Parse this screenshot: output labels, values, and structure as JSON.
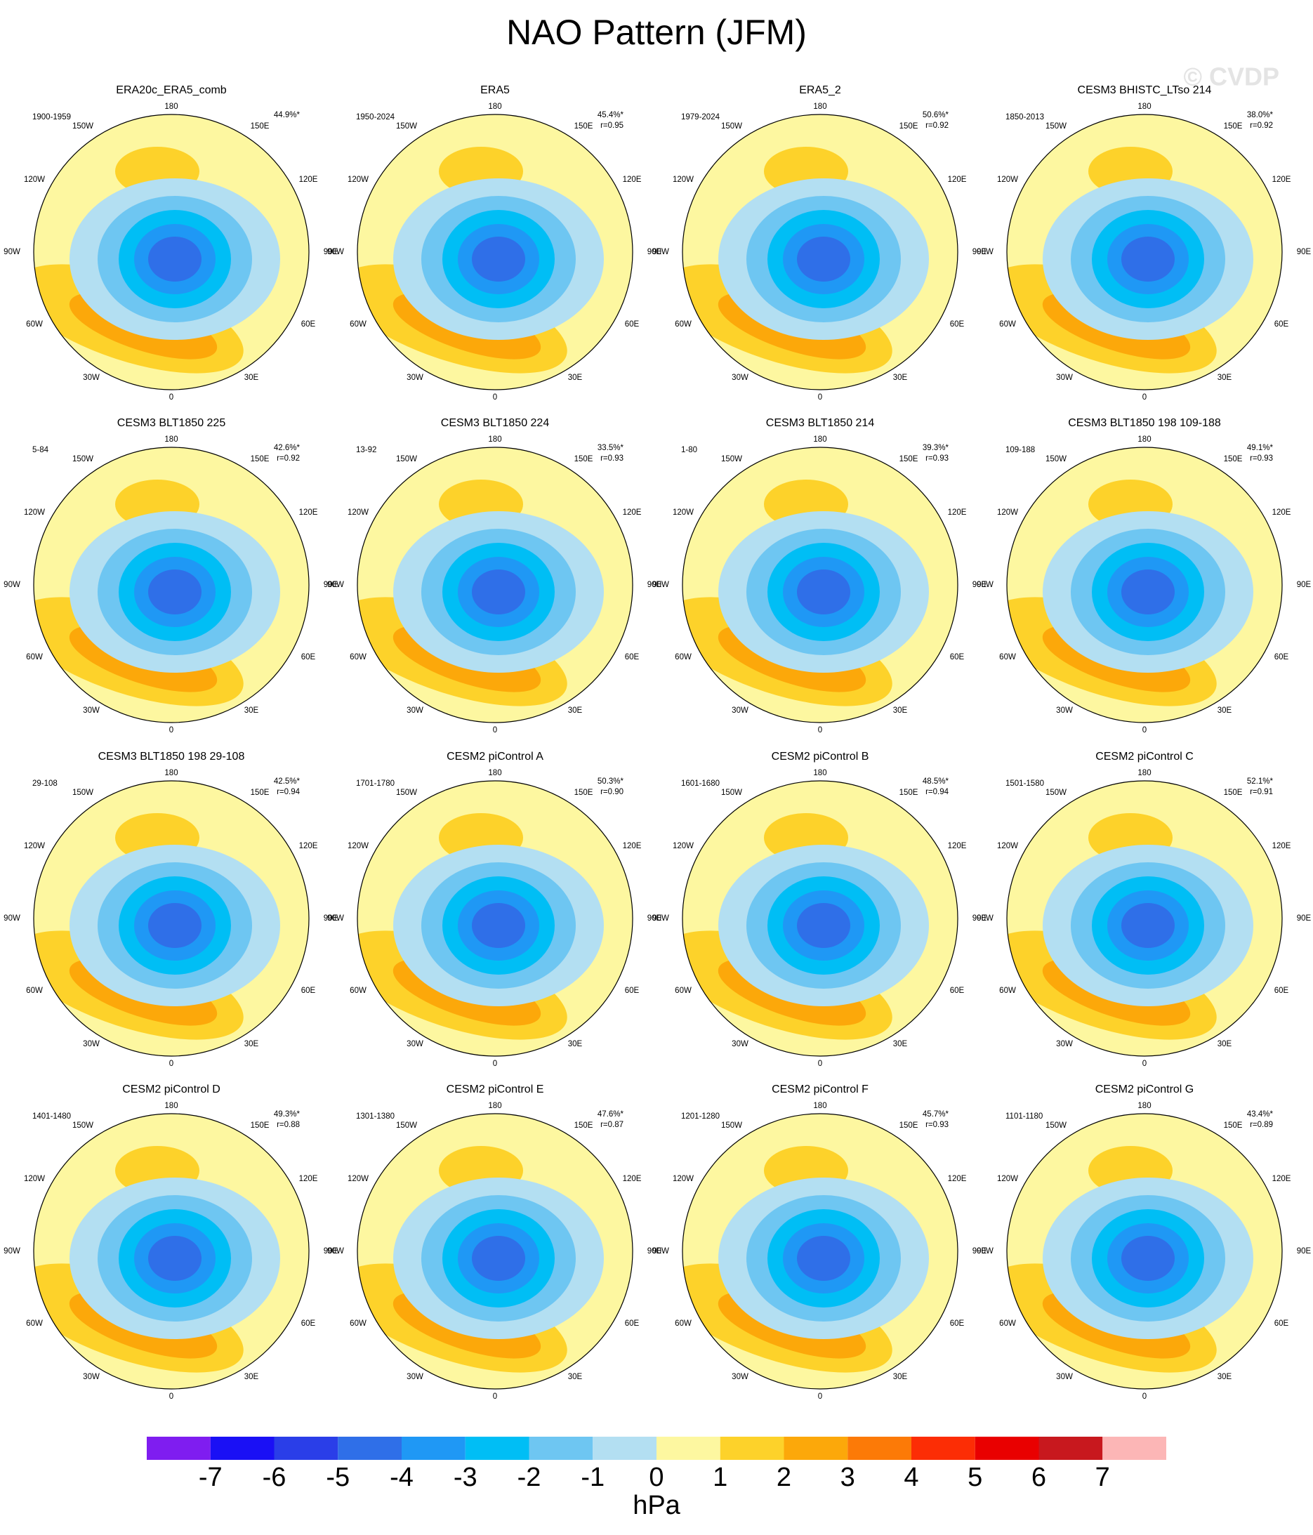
{
  "title": "NAO Pattern (JFM)",
  "watermark": "© CVDP",
  "lon_labels": [
    "180",
    "150W",
    "150E",
    "120W",
    "120E",
    "90W",
    "90E",
    "60W",
    "60E",
    "30W",
    "30E",
    "0"
  ],
  "panels": [
    {
      "title": "ERA20c_ERA5_comb",
      "period": "1900-1959",
      "pct": "44.9%*"
    },
    {
      "title": "ERA5",
      "period": "1950-2024",
      "pct": "45.4%*",
      "r": "r=0.95"
    },
    {
      "title": "ERA5_2",
      "period": "1979-2024",
      "pct": "50.6%*",
      "r": "r=0.92"
    },
    {
      "title": "CESM3 BHISTC_LTso 214",
      "period": "1850-2013",
      "pct": "38.0%*",
      "r": "r=0.92"
    },
    {
      "title": "CESM3 BLT1850 225",
      "period": "5-84",
      "pct": "42.6%*",
      "r": "r=0.92"
    },
    {
      "title": "CESM3 BLT1850 224",
      "period": "13-92",
      "pct": "33.5%*",
      "r": "r=0.93"
    },
    {
      "title": "CESM3 BLT1850 214",
      "period": "1-80",
      "pct": "39.3%*",
      "r": "r=0.93"
    },
    {
      "title": "CESM3 BLT1850 198 109-188",
      "period": "109-188",
      "pct": "49.1%*",
      "r": "r=0.93"
    },
    {
      "title": "CESM3 BLT1850 198 29-108",
      "period": "29-108",
      "pct": "42.5%*",
      "r": "r=0.94"
    },
    {
      "title": "CESM2 piControl A",
      "period": "1701-1780",
      "pct": "50.3%*",
      "r": "r=0.90"
    },
    {
      "title": "CESM2 piControl B",
      "period": "1601-1680",
      "pct": "48.5%*",
      "r": "r=0.94"
    },
    {
      "title": "CESM2 piControl C",
      "period": "1501-1580",
      "pct": "52.1%*",
      "r": "r=0.91"
    },
    {
      "title": "CESM2 piControl D",
      "period": "1401-1480",
      "pct": "49.3%*",
      "r": "r=0.88"
    },
    {
      "title": "CESM2 piControl E",
      "period": "1301-1380",
      "pct": "47.6%*",
      "r": "r=0.87"
    },
    {
      "title": "CESM2 piControl F",
      "period": "1201-1280",
      "pct": "45.7%*",
      "r": "r=0.93"
    },
    {
      "title": "CESM2 piControl G",
      "period": "1101-1180",
      "pct": "43.4%*",
      "r": "r=0.89"
    }
  ],
  "colorbar": {
    "colors": [
      "#7f1df0",
      "#1a10f5",
      "#2a3ee8",
      "#2f6fe8",
      "#1f98f5",
      "#00bef5",
      "#6ec6f2",
      "#b3dff2",
      "#fdf7a0",
      "#fdd22a",
      "#fca80a",
      "#fc7a07",
      "#fc2d05",
      "#e90000",
      "#c8181e",
      "#fcb6b6"
    ],
    "ticks": [
      -7,
      -6,
      -5,
      -4,
      -3,
      -2,
      -1,
      0,
      1,
      2,
      3,
      4,
      5,
      6,
      7
    ],
    "unit": "hPa"
  }
}
